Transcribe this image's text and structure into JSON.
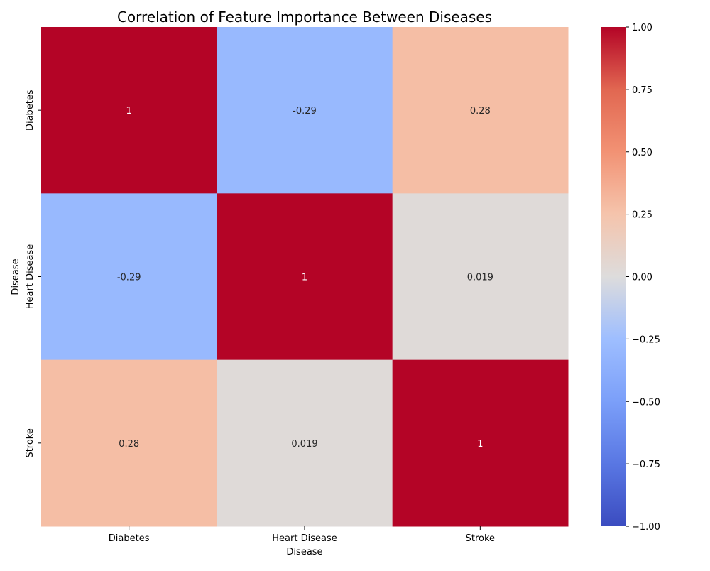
{
  "chart_data": {
    "type": "heatmap",
    "title": "Correlation of Feature Importance Between Diseases",
    "xlabel": "Disease",
    "ylabel": "Disease",
    "x_categories": [
      "Diabetes",
      "Heart Disease",
      "Stroke"
    ],
    "y_categories": [
      "Diabetes",
      "Heart Disease",
      "Stroke"
    ],
    "values": [
      [
        1,
        -0.29,
        0.28
      ],
      [
        -0.29,
        1,
        0.019
      ],
      [
        0.28,
        0.019,
        1
      ]
    ],
    "annotations": [
      [
        "1",
        "-0.29",
        "0.28"
      ],
      [
        "-0.29",
        "1",
        "0.019"
      ],
      [
        "0.28",
        "0.019",
        "1"
      ]
    ],
    "colormap": "coolwarm",
    "vmin": -1,
    "vmax": 1,
    "colorbar_ticks": [
      "1.00",
      "0.75",
      "0.50",
      "0.25",
      "0.00",
      "−0.25",
      "−0.50",
      "−0.75",
      "−1.00"
    ],
    "colorbar_tick_values": [
      1,
      0.75,
      0.5,
      0.25,
      0,
      -0.25,
      -0.5,
      -0.75,
      -1
    ]
  }
}
